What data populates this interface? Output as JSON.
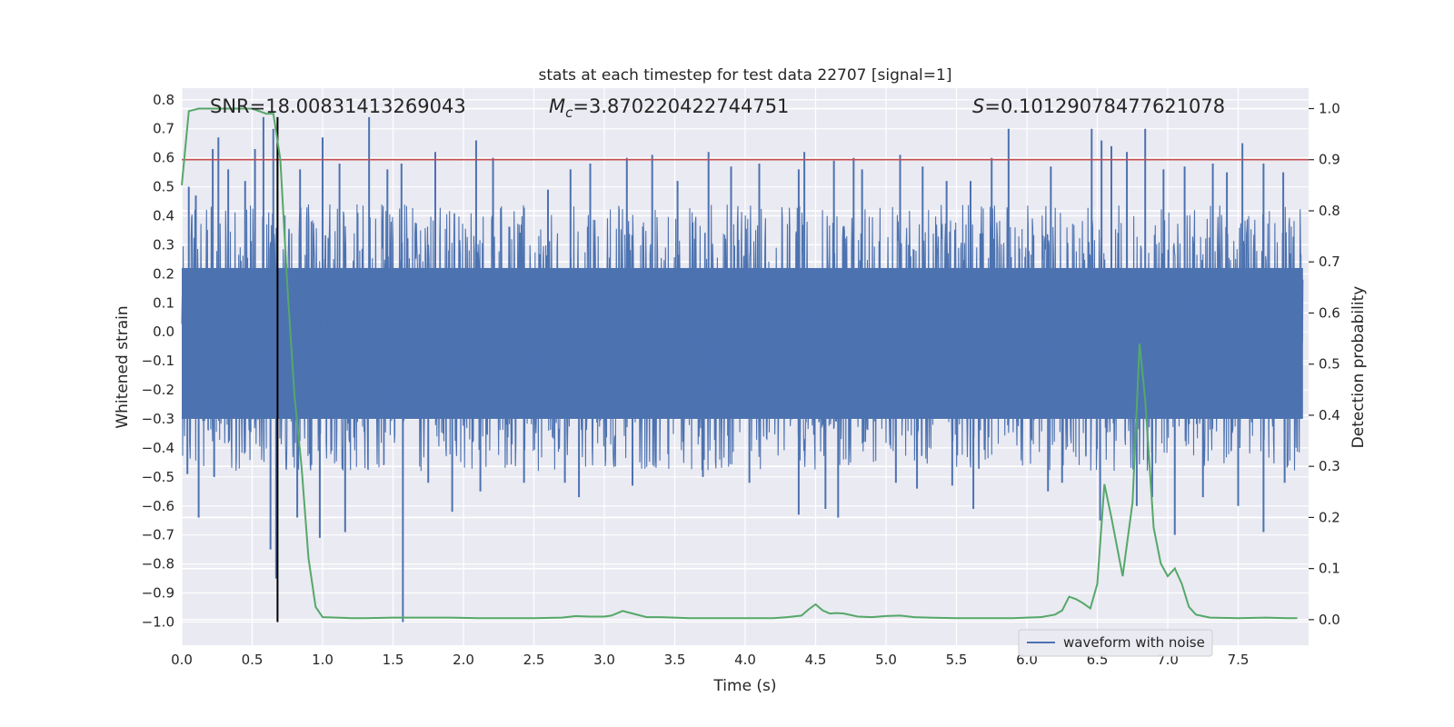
{
  "chart_data": {
    "type": "line",
    "title": "stats at each timestep for test data 22707 [signal=1]",
    "xlabel": "Time (s)",
    "ylabel": "Whitened strain",
    "ylabel_right": "Detection probability",
    "xlim": [
      0.0,
      8.0
    ],
    "ylim": [
      -1.08,
      0.84
    ],
    "ylim_right": [
      -0.05,
      1.04
    ],
    "x_ticks": [
      "0.0",
      "0.5",
      "1.0",
      "1.5",
      "2.0",
      "2.5",
      "3.0",
      "3.5",
      "4.0",
      "4.5",
      "5.0",
      "5.5",
      "6.0",
      "6.5",
      "7.0",
      "7.5"
    ],
    "y_ticks": [
      "0.8",
      "0.7",
      "0.6",
      "0.5",
      "0.4",
      "0.3",
      "0.2",
      "0.1",
      "0.0",
      "−0.1",
      "−0.2",
      "−0.3",
      "−0.4",
      "−0.5",
      "−0.6",
      "−0.7",
      "−0.8",
      "−0.9",
      "−1.0"
    ],
    "y_ticks_right": [
      "1.0",
      "0.9",
      "0.8",
      "0.7",
      "0.6",
      "0.5",
      "0.4",
      "0.3",
      "0.2",
      "0.1",
      "0.0"
    ],
    "grid": true,
    "legend_position": "lower-right",
    "annotations": {
      "snr": "SNR=18.00831413269043",
      "mc_symbol": "M",
      "mc_sub": "c",
      "mc_value": "=3.870220422744751",
      "s_symbol": "S",
      "s_value": "=0.10129078477621078"
    },
    "threshold": {
      "value": 0.9,
      "axis": "right",
      "color": "#c44e52"
    },
    "merger_time": 0.68,
    "series": [
      {
        "name": "waveform with noise",
        "axis": "left",
        "color": "#4c72b0",
        "kind": "noise",
        "core_range": [
          -0.3,
          0.22
        ],
        "envelope_range": [
          -0.48,
          0.44
        ],
        "peaks_up": [
          [
            0.05,
            0.5
          ],
          [
            0.1,
            0.47
          ],
          [
            0.22,
            0.63
          ],
          [
            0.26,
            0.67
          ],
          [
            0.33,
            0.56
          ],
          [
            0.45,
            0.52
          ],
          [
            0.52,
            0.63
          ],
          [
            0.58,
            0.74
          ],
          [
            0.65,
            0.7
          ],
          [
            0.84,
            0.56
          ],
          [
            1.0,
            0.67
          ],
          [
            1.12,
            0.58
          ],
          [
            1.33,
            0.74
          ],
          [
            1.46,
            0.56
          ],
          [
            1.56,
            0.58
          ],
          [
            1.8,
            0.62
          ],
          [
            2.09,
            0.66
          ],
          [
            2.21,
            0.6
          ],
          [
            2.6,
            0.49
          ],
          [
            2.76,
            0.56
          ],
          [
            2.9,
            0.58
          ],
          [
            3.16,
            0.6
          ],
          [
            3.34,
            0.61
          ],
          [
            3.52,
            0.52
          ],
          [
            3.74,
            0.62
          ],
          [
            3.9,
            0.57
          ],
          [
            4.1,
            0.58
          ],
          [
            4.38,
            0.56
          ],
          [
            4.42,
            0.62
          ],
          [
            4.63,
            0.59
          ],
          [
            4.77,
            0.6
          ],
          [
            4.83,
            0.56
          ],
          [
            5.1,
            0.61
          ],
          [
            5.26,
            0.57
          ],
          [
            5.43,
            0.52
          ],
          [
            5.6,
            0.52
          ],
          [
            5.75,
            0.6
          ],
          [
            5.87,
            0.7
          ],
          [
            6.17,
            0.57
          ],
          [
            6.46,
            0.7
          ],
          [
            6.53,
            0.66
          ],
          [
            6.6,
            0.64
          ],
          [
            6.71,
            0.62
          ],
          [
            6.84,
            0.7
          ],
          [
            6.97,
            0.56
          ],
          [
            7.12,
            0.57
          ],
          [
            7.32,
            0.58
          ],
          [
            7.42,
            0.55
          ],
          [
            7.53,
            0.65
          ],
          [
            7.68,
            0.58
          ],
          [
            7.82,
            0.55
          ]
        ],
        "peaks_down": [
          [
            0.04,
            -0.49
          ],
          [
            0.12,
            -0.64
          ],
          [
            0.23,
            -0.5
          ],
          [
            0.63,
            -0.75
          ],
          [
            0.67,
            -0.85
          ],
          [
            0.82,
            -0.64
          ],
          [
            0.98,
            -0.71
          ],
          [
            1.16,
            -0.69
          ],
          [
            1.57,
            -1.0
          ],
          [
            1.75,
            -0.52
          ],
          [
            1.92,
            -0.62
          ],
          [
            2.12,
            -0.55
          ],
          [
            2.43,
            -0.52
          ],
          [
            2.72,
            -0.52
          ],
          [
            2.82,
            -0.57
          ],
          [
            3.2,
            -0.53
          ],
          [
            3.7,
            -0.5
          ],
          [
            4.03,
            -0.52
          ],
          [
            4.38,
            -0.63
          ],
          [
            4.57,
            -0.61
          ],
          [
            4.66,
            -0.64
          ],
          [
            5.07,
            -0.52
          ],
          [
            5.22,
            -0.54
          ],
          [
            5.47,
            -0.53
          ],
          [
            5.62,
            -0.61
          ],
          [
            6.15,
            -0.55
          ],
          [
            6.25,
            -0.52
          ],
          [
            6.52,
            -0.65
          ],
          [
            6.78,
            -0.6
          ],
          [
            6.89,
            -0.57
          ],
          [
            7.05,
            -0.7
          ],
          [
            7.25,
            -0.57
          ],
          [
            7.5,
            -0.6
          ],
          [
            7.68,
            -0.69
          ],
          [
            7.83,
            -0.52
          ]
        ]
      },
      {
        "name": "",
        "axis": "right",
        "color": "#55a868",
        "x": [
          0.0,
          0.05,
          0.12,
          0.2,
          0.3,
          0.4,
          0.5,
          0.6,
          0.65,
          0.7,
          0.75,
          0.8,
          0.85,
          0.9,
          0.95,
          1.0,
          1.1,
          1.2,
          1.3,
          1.5,
          1.7,
          1.9,
          2.1,
          2.3,
          2.5,
          2.7,
          2.8,
          2.9,
          3.0,
          3.05,
          3.13,
          3.2,
          3.3,
          3.4,
          3.5,
          3.6,
          3.7,
          3.8,
          4.0,
          4.2,
          4.3,
          4.4,
          4.45,
          4.5,
          4.55,
          4.6,
          4.65,
          4.7,
          4.8,
          4.9,
          5.0,
          5.1,
          5.2,
          5.3,
          5.5,
          5.7,
          5.9,
          6.0,
          6.1,
          6.2,
          6.25,
          6.3,
          6.35,
          6.4,
          6.45,
          6.5,
          6.55,
          6.6,
          6.68,
          6.75,
          6.8,
          6.84,
          6.9,
          6.95,
          7.0,
          7.05,
          7.1,
          7.15,
          7.2,
          7.3,
          7.5,
          7.7,
          7.85,
          7.92
        ],
        "y": [
          0.85,
          0.995,
          1.0,
          1.0,
          1.0,
          1.0,
          1.0,
          0.99,
          0.99,
          0.9,
          0.65,
          0.44,
          0.3,
          0.12,
          0.025,
          0.005,
          0.004,
          0.003,
          0.003,
          0.004,
          0.004,
          0.004,
          0.003,
          0.003,
          0.003,
          0.004,
          0.007,
          0.006,
          0.006,
          0.008,
          0.017,
          0.012,
          0.005,
          0.005,
          0.004,
          0.003,
          0.003,
          0.003,
          0.003,
          0.003,
          0.005,
          0.008,
          0.02,
          0.03,
          0.018,
          0.012,
          0.013,
          0.012,
          0.006,
          0.005,
          0.007,
          0.008,
          0.005,
          0.004,
          0.003,
          0.003,
          0.003,
          0.004,
          0.005,
          0.01,
          0.018,
          0.045,
          0.04,
          0.032,
          0.022,
          0.07,
          0.265,
          0.2,
          0.085,
          0.23,
          0.54,
          0.43,
          0.18,
          0.11,
          0.085,
          0.1,
          0.07,
          0.025,
          0.01,
          0.004,
          0.003,
          0.004,
          0.003,
          0.003
        ]
      }
    ]
  }
}
